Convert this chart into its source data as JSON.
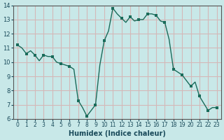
{
  "xlabel": "Humidex (Indice chaleur)",
  "background_color": "#c8e8e8",
  "grid_color": "#d4b8b8",
  "line_color": "#1a6b5a",
  "marker_color": "#1a6b5a",
  "xlim": [
    -0.5,
    23.5
  ],
  "ylim": [
    6,
    14
  ],
  "yticks": [
    6,
    7,
    8,
    9,
    10,
    11,
    12,
    13,
    14
  ],
  "xticks": [
    0,
    1,
    2,
    3,
    4,
    5,
    6,
    7,
    8,
    9,
    10,
    11,
    12,
    13,
    14,
    15,
    16,
    17,
    18,
    19,
    20,
    21,
    22,
    23
  ],
  "x": [
    0,
    0.5,
    1,
    1.5,
    2,
    2.5,
    3,
    3.5,
    4,
    4.5,
    5,
    5.5,
    6,
    6.5,
    7,
    7.5,
    8,
    8.5,
    9,
    9.5,
    10,
    10.5,
    11,
    11.5,
    12,
    12.5,
    13,
    13.5,
    14,
    14.5,
    15,
    15.5,
    16,
    16.5,
    17,
    17.5,
    18,
    18.5,
    19,
    19.5,
    20,
    20.5,
    21,
    21.5,
    22,
    22.5,
    23
  ],
  "y": [
    11.2,
    11.0,
    10.6,
    10.8,
    10.5,
    10.1,
    10.5,
    10.4,
    10.4,
    10.0,
    9.9,
    9.8,
    9.7,
    9.5,
    7.3,
    6.8,
    6.2,
    6.6,
    7.0,
    9.8,
    11.5,
    12.2,
    13.8,
    13.4,
    13.1,
    12.8,
    13.2,
    12.9,
    13.0,
    13.0,
    13.4,
    13.4,
    13.3,
    12.9,
    12.8,
    11.6,
    9.5,
    9.3,
    9.1,
    8.7,
    8.3,
    8.6,
    7.6,
    7.1,
    6.6,
    6.8,
    6.8
  ],
  "marker_x": [
    0,
    1,
    2,
    3,
    4,
    5,
    6,
    7,
    8,
    9,
    10,
    11,
    12,
    13,
    14,
    15,
    16,
    17,
    18,
    19,
    20,
    21,
    22,
    23
  ],
  "marker_y": [
    11.2,
    10.6,
    10.5,
    10.5,
    10.4,
    9.9,
    9.7,
    7.3,
    6.2,
    7.0,
    11.5,
    13.8,
    13.1,
    13.2,
    13.0,
    13.4,
    13.3,
    12.8,
    9.5,
    9.1,
    8.3,
    7.6,
    6.6,
    6.8
  ]
}
